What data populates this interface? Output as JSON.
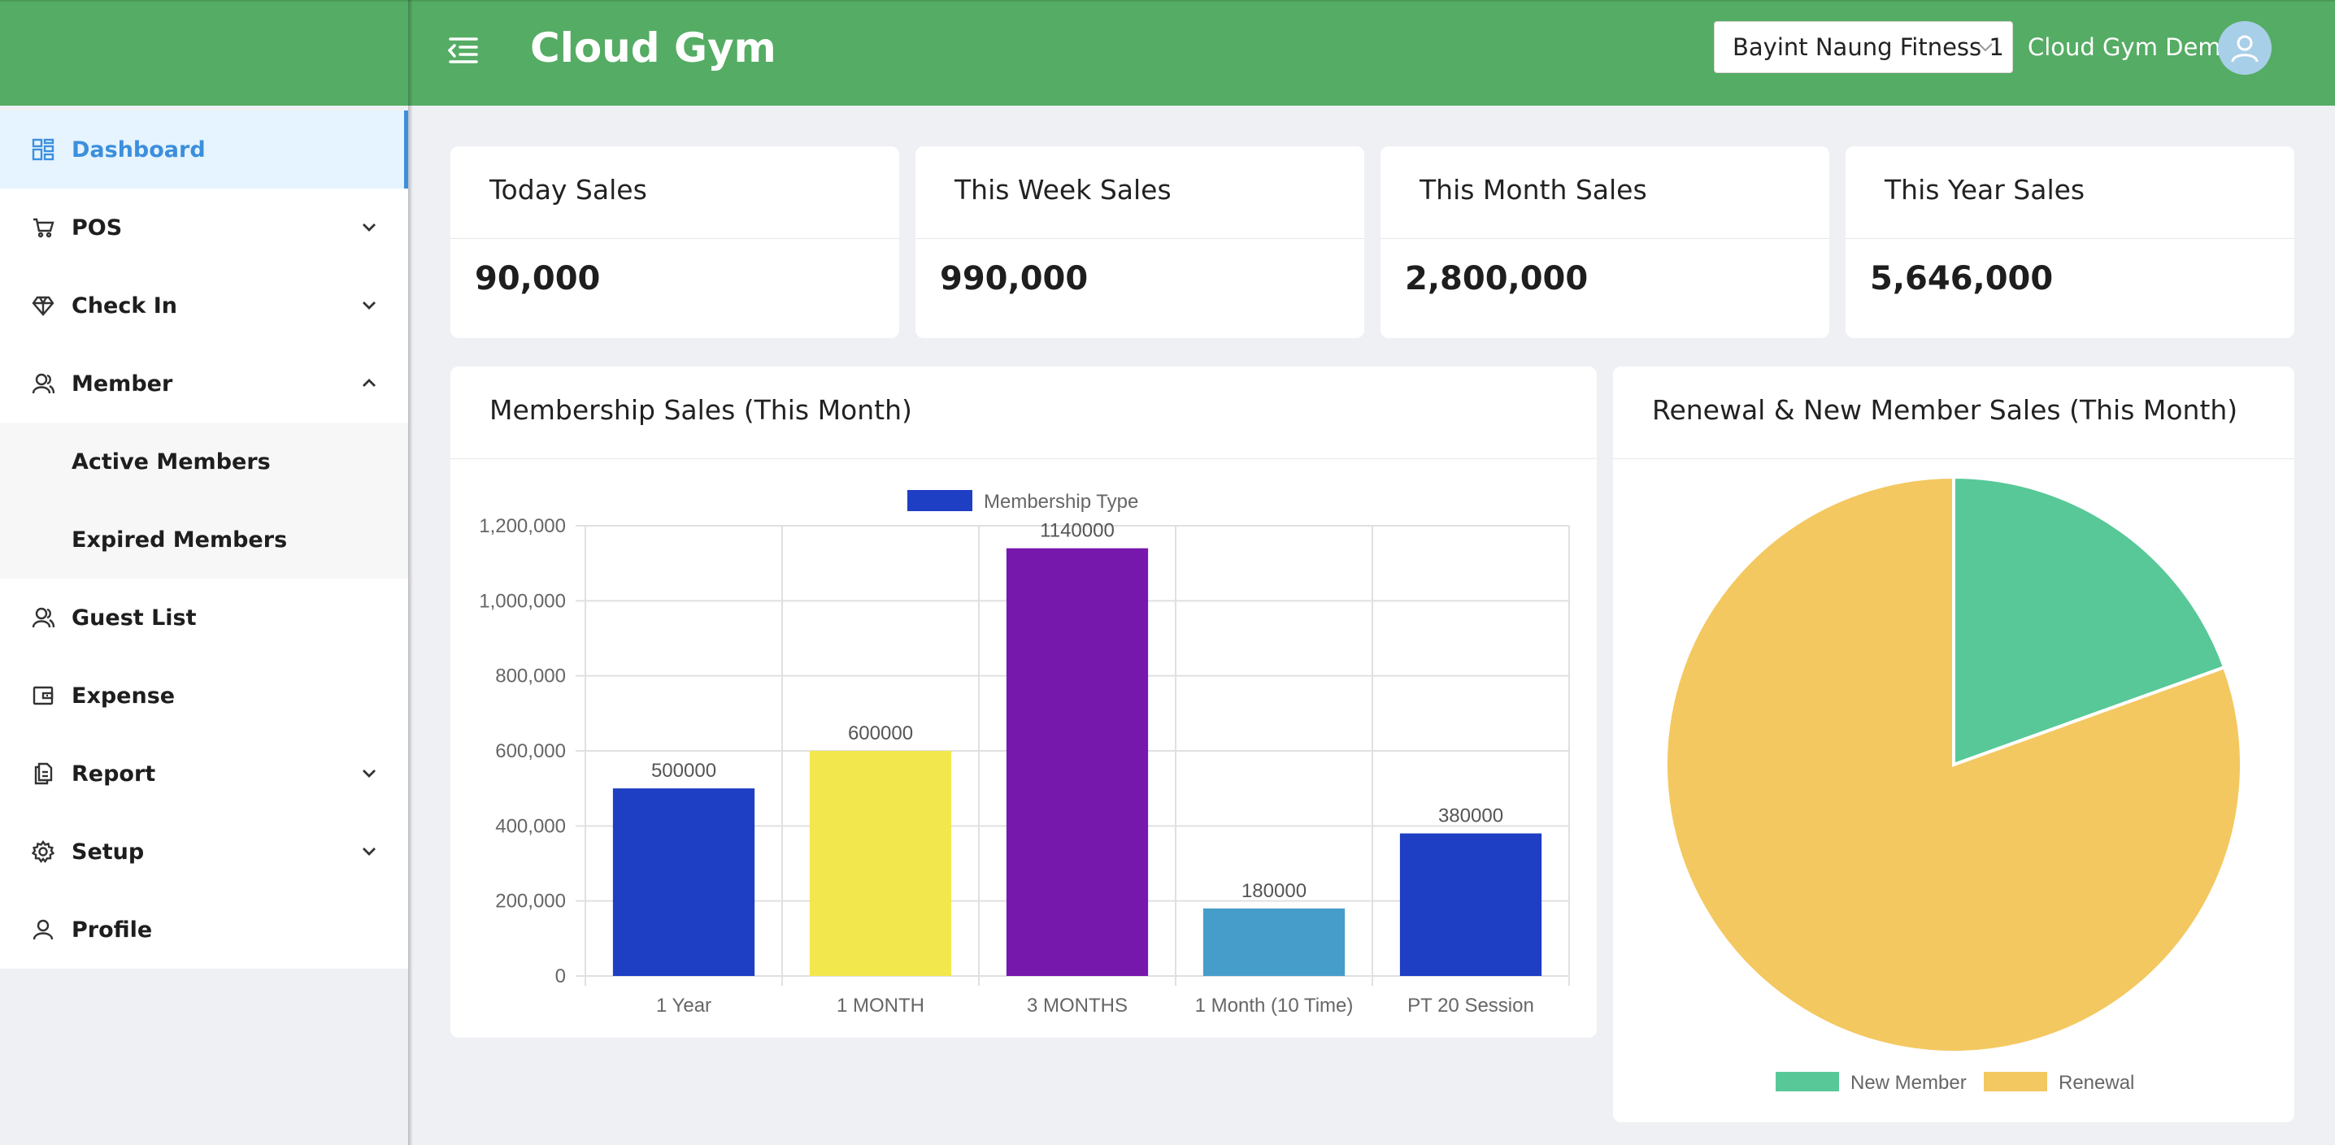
{
  "header": {
    "app_title": "Cloud Gym",
    "branch": "Bayint Naung Fitness 1",
    "user": "Cloud Gym Demo",
    "bg_color": "#55ac64"
  },
  "sidebar": {
    "items": [
      {
        "label": "Dashboard",
        "icon": "dashboard-icon",
        "active": true
      },
      {
        "label": "POS",
        "icon": "cart-icon",
        "expandable": true
      },
      {
        "label": "Check In",
        "icon": "diamond-icon",
        "expandable": true
      },
      {
        "label": "Member",
        "icon": "users-icon",
        "expanded": true,
        "children": [
          "Active Members",
          "Expired Members"
        ]
      },
      {
        "label": "Guest List",
        "icon": "users-icon"
      },
      {
        "label": "Expense",
        "icon": "wallet-icon"
      },
      {
        "label": "Report",
        "icon": "report-icon",
        "expandable": true
      },
      {
        "label": "Setup",
        "icon": "gear-icon",
        "expandable": true
      },
      {
        "label": "Profile",
        "icon": "user-icon"
      }
    ],
    "accent_color": "#3c8fdc"
  },
  "stats": [
    {
      "title": "Today Sales",
      "value": "90,000"
    },
    {
      "title": "This Week Sales",
      "value": "990,000"
    },
    {
      "title": "This Month Sales",
      "value": "2,800,000"
    },
    {
      "title": "This Year Sales",
      "value": "5,646,000"
    }
  ],
  "bar_panel": {
    "title": "Membership Sales (This Month)"
  },
  "pie_panel": {
    "title": "Renewal & New Member Sales (This Month)"
  },
  "chart_data": [
    {
      "type": "bar",
      "title": "Membership Sales (This Month)",
      "legend": "Membership Type",
      "legend_position": "top",
      "categories": [
        "1 Year",
        "1 MONTH",
        "3 MONTHS",
        "1 Month (10 Time)",
        "PT 20 Session"
      ],
      "values": [
        500000,
        600000,
        1140000,
        180000,
        380000
      ],
      "value_labels": [
        "500000",
        "600000",
        "1140000",
        "180000",
        "380000"
      ],
      "colors": [
        "#1e3ec4",
        "#f2e84e",
        "#7718ad",
        "#479dc9",
        "#1e3ec4"
      ],
      "yticks": [
        0,
        200000,
        400000,
        600000,
        800000,
        1000000,
        1200000
      ],
      "ytick_labels": [
        "0",
        "200,000",
        "400,000",
        "600,000",
        "800,000",
        "1,000,000",
        "1,200,000"
      ],
      "ylim": [
        0,
        1200000
      ],
      "grid": true
    },
    {
      "type": "pie",
      "title": "Renewal & New Member Sales (This Month)",
      "labels": [
        "New Member",
        "Renewal"
      ],
      "values": [
        19.5,
        80.5
      ],
      "colors": [
        "#58c898",
        "#f4c860"
      ],
      "legend_position": "bottom"
    }
  ]
}
